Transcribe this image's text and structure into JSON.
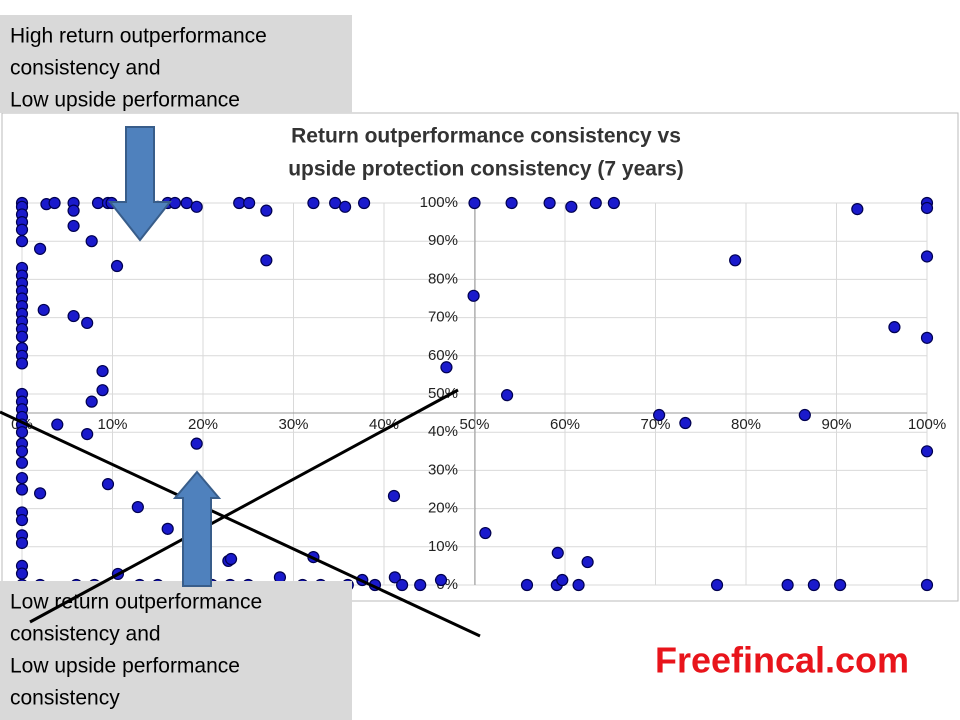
{
  "chart_data": {
    "type": "scatter",
    "title": [
      "Return outperformance consistency vs",
      "upside protection consistency (7 years)"
    ],
    "xlim": [
      0,
      100
    ],
    "ylim": [
      0,
      100
    ],
    "xticks": [
      {
        "value": 0,
        "label": "0%"
      },
      {
        "value": 10,
        "label": "10%"
      },
      {
        "value": 20,
        "label": "20%"
      },
      {
        "value": 30,
        "label": "30%"
      },
      {
        "value": 40,
        "label": "40%"
      },
      {
        "value": 50,
        "label": "50%"
      },
      {
        "value": 60,
        "label": "60%"
      },
      {
        "value": 70,
        "label": "70%"
      },
      {
        "value": 80,
        "label": "80%"
      },
      {
        "value": 90,
        "label": "90%"
      },
      {
        "value": 100,
        "label": "100%"
      }
    ],
    "yticks": [
      {
        "value": 0,
        "label": "0%"
      },
      {
        "value": 10,
        "label": "10%"
      },
      {
        "value": 20,
        "label": "20%"
      },
      {
        "value": 30,
        "label": "30%"
      },
      {
        "value": 40,
        "label": "40%"
      },
      {
        "value": 50,
        "label": "50%"
      },
      {
        "value": 60,
        "label": "60%"
      },
      {
        "value": 70,
        "label": "70%"
      },
      {
        "value": 80,
        "label": "80%"
      },
      {
        "value": 90,
        "label": "90%"
      },
      {
        "value": 100,
        "label": "100%"
      }
    ],
    "grid": true,
    "series": [
      {
        "color": "#1a1acc",
        "x": [
          0,
          0,
          0,
          0,
          0,
          0,
          0,
          0,
          0,
          0,
          0,
          0,
          0,
          0,
          0,
          0,
          0,
          0,
          0,
          0,
          0,
          0,
          0,
          0,
          0,
          0,
          0,
          0,
          0,
          0,
          0,
          0,
          0,
          0,
          0,
          0,
          0,
          2.7,
          3.6,
          5.7,
          5.7,
          5.7,
          2,
          7.7,
          8.4,
          9.5,
          9.9,
          10.5,
          15,
          16.1,
          16.9,
          18.2,
          19.3,
          24,
          25.1,
          27,
          27,
          32.2,
          34.6,
          35.7,
          37.8,
          2.4,
          5.7,
          7.2,
          8.9,
          8.9,
          7.7,
          3.9,
          7.2,
          19.3,
          46.9,
          2,
          9.5,
          12.8,
          16.1,
          22.8,
          23.1,
          32.2,
          41.1,
          10.6,
          41.2,
          37.6,
          46.3,
          28.5,
          2,
          6,
          8,
          13,
          15,
          19,
          21,
          23,
          25,
          31,
          33,
          36,
          39,
          42,
          44,
          50,
          54.1,
          58.3,
          60.7,
          63.4,
          65.4,
          49.9,
          53.6,
          51.2,
          55.8,
          59.2,
          59.1,
          59.7,
          61.5,
          62.5,
          70.4,
          73.3,
          76.8,
          78.8,
          84.6,
          86.5,
          87.5,
          90.4,
          92.3,
          96.4,
          100,
          100,
          100,
          100,
          100,
          100
        ],
        "values": [
          100,
          99,
          97,
          95,
          93,
          90,
          83,
          81,
          79,
          77,
          75,
          73,
          71,
          69,
          67,
          65,
          62,
          60,
          58,
          50,
          48,
          46,
          44,
          42,
          40,
          37,
          35,
          32,
          28,
          25,
          19,
          17,
          13,
          11,
          5,
          3,
          0,
          99.7,
          100,
          100,
          98,
          94,
          88,
          90,
          100,
          100,
          100,
          83.5,
          99,
          100,
          100,
          100,
          99,
          100,
          100,
          98,
          85,
          100,
          100,
          99,
          100,
          72,
          70.4,
          68.6,
          56,
          51,
          48,
          42,
          39.5,
          37,
          57,
          24,
          26.4,
          20.4,
          14.7,
          6.3,
          6.8,
          7.3,
          23.3,
          2.9,
          2,
          1.3,
          1.3,
          2,
          0,
          0,
          0,
          0,
          0,
          0,
          0,
          0,
          0,
          0,
          0,
          0,
          0,
          0,
          0,
          100,
          100,
          100,
          99,
          100,
          100,
          75.7,
          49.7,
          13.6,
          0,
          8.4,
          0,
          1.3,
          0,
          6,
          44.5,
          42.4,
          0,
          85,
          0,
          44.5,
          0,
          0,
          98.4,
          67.5,
          100,
          98.7,
          86,
          64.7,
          35,
          0
        ]
      }
    ]
  },
  "annotations": {
    "top_box": [
      "High return outperformance",
      "consistency and",
      "Low upside performance"
    ],
    "bottom_box": [
      "Low return outperformance",
      "consistency and",
      "Low upside performance",
      "consistency"
    ],
    "brand": "Freefincal.com"
  }
}
